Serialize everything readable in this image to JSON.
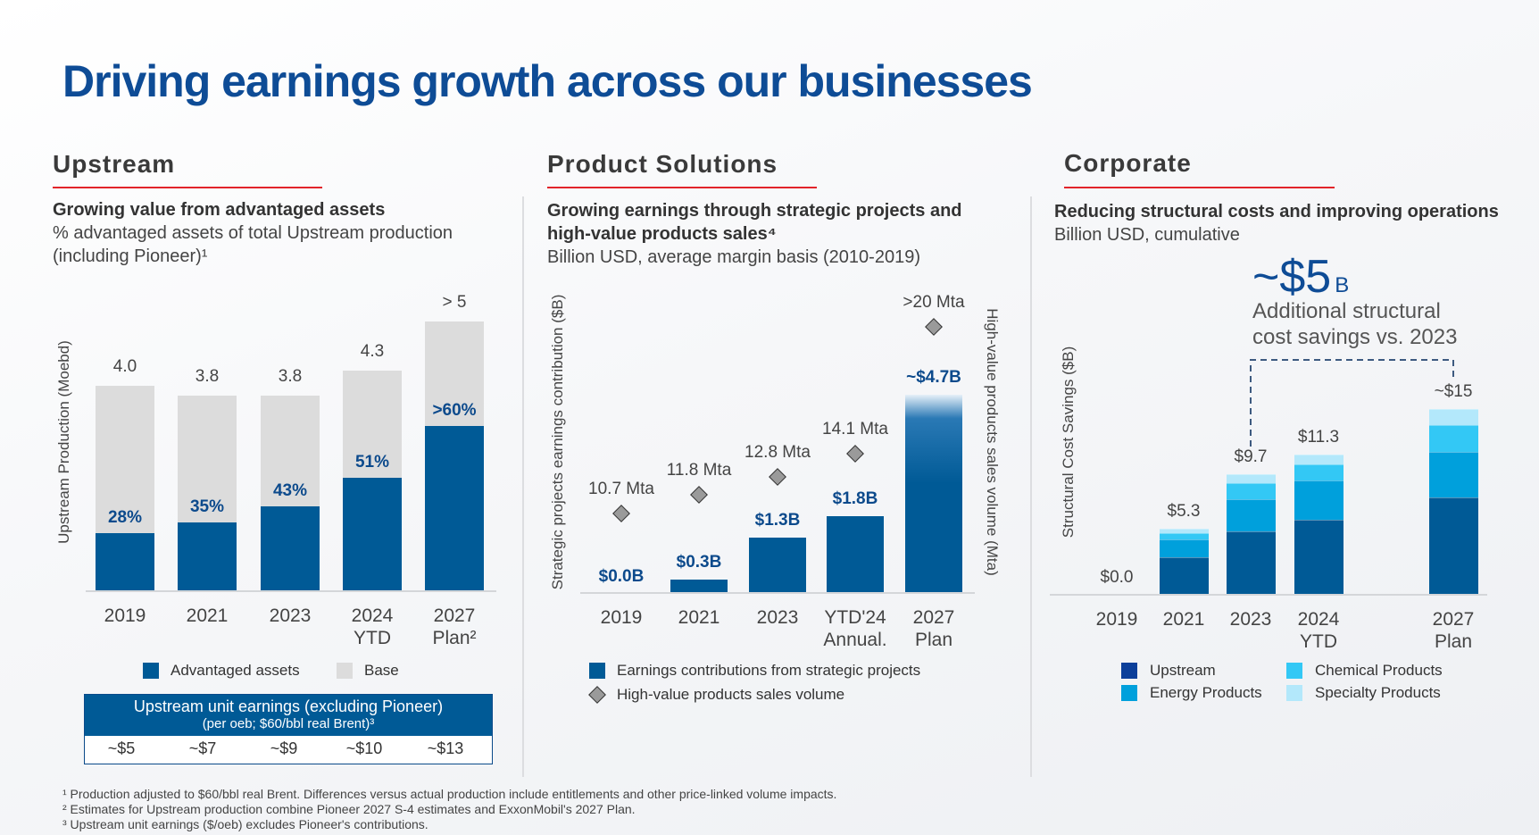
{
  "title": "Driving earnings growth across our businesses",
  "colors": {
    "title": "#0e4c96",
    "accent_line": "#e2242a",
    "dark_blue": "#005a96",
    "base_gray": "#dcdcdc",
    "energy": "#00a0dc",
    "chemical": "#33c8f5",
    "specialty": "#b3e8fb"
  },
  "upstream": {
    "header": "Upstream",
    "subtitle_bold": "Growing value from advantaged assets",
    "subtitle_1": "% advantaged assets of total Upstream production",
    "subtitle_2": "(including Pioneer)¹",
    "table": {
      "title": "Upstream unit earnings (excluding Pioneer)",
      "subtitle": "(per oeb; $60/bbl real Brent)³",
      "values": [
        "~$5",
        "~$7",
        "~$9",
        "~$10",
        "~$13"
      ]
    }
  },
  "product_solutions": {
    "header": "Product Solutions",
    "subtitle_bold_1": "Growing earnings through strategic projects and",
    "subtitle_bold_2": "high-value products sales⁴",
    "subtitle_1": "Billion USD, average margin basis (2010-2019)"
  },
  "corporate": {
    "header": "Corporate",
    "subtitle_bold": "Reducing structural costs and improving operations",
    "subtitle_1": "Billion USD, cumulative",
    "callout_value": "~$5",
    "callout_unit": "B",
    "callout_text_1": "Additional structural",
    "callout_text_2": "cost savings vs. 2023"
  },
  "chart_data": [
    {
      "type": "bar",
      "stacked": true,
      "ylabel": "Upstream Production (Moebd)",
      "categories": [
        "2019",
        "2021",
        "2023",
        "2024|YTD",
        "2027|Plan²"
      ],
      "totals": [
        4.0,
        3.8,
        3.8,
        4.3,
        5.25
      ],
      "total_labels": [
        "4.0",
        "3.8",
        "3.8",
        "4.3",
        "> 5"
      ],
      "advantaged_share": [
        0.28,
        0.35,
        0.43,
        0.51,
        0.61
      ],
      "share_labels": [
        "28%",
        "35%",
        "43%",
        "51%",
        ">60%"
      ],
      "legend": [
        "Advantaged assets",
        "Base"
      ],
      "series_colors": [
        "#005a96",
        "#dcdcdc"
      ]
    },
    {
      "type": "bar",
      "ylabel": "Strategic projects earnings contribution ($B)",
      "y2label": "High-value products sales volume (Mta)",
      "categories": [
        "2019",
        "2021",
        "2023",
        "YTD'24|Annual.",
        "2027|Plan"
      ],
      "values": [
        0.0,
        0.3,
        1.3,
        1.8,
        4.7
      ],
      "value_labels": [
        "$0.0B",
        "$0.3B",
        "$1.3B",
        "$1.8B",
        "~$4.7B"
      ],
      "secondary": {
        "type": "scatter",
        "values": [
          10.7,
          11.8,
          12.8,
          14.1,
          21.3
        ],
        "labels": [
          "10.7 Mta",
          "11.8 Mta",
          "12.8 Mta",
          "14.1 Mta",
          ">20 Mta"
        ]
      },
      "legend": [
        "Earnings contributions from strategic projects",
        "High-value products sales volume"
      ]
    },
    {
      "type": "bar",
      "stacked": true,
      "ylabel": "Structural Cost Savings ($B)",
      "categories": [
        "2019",
        "2021",
        "2023",
        "2024|YTD",
        "2027|Plan"
      ],
      "series": [
        {
          "name": "Upstream",
          "values": [
            0,
            3.0,
            5.1,
            6.0,
            7.8
          ],
          "color": "#005a96"
        },
        {
          "name": "Energy Products",
          "values": [
            0,
            1.4,
            2.6,
            3.2,
            3.7
          ],
          "color": "#00a0dc"
        },
        {
          "name": "Chemical Products",
          "values": [
            0,
            0.5,
            1.3,
            1.3,
            2.2
          ],
          "color": "#33c8f5"
        },
        {
          "name": "Specialty Products",
          "values": [
            0,
            0.4,
            0.7,
            0.8,
            1.3
          ],
          "color": "#b3e8fb"
        }
      ],
      "total_labels": [
        "$0.0",
        "$5.3",
        "$9.7",
        "$11.3",
        "~$15"
      ],
      "legend_swatch_colors": [
        "#0c3f9a",
        "#00a0dc",
        "#33c8f5",
        "#b3e8fb"
      ]
    }
  ],
  "footnotes": [
    "¹ Production adjusted to $60/bbl real Brent. Differences versus actual production include entitlements and other price-linked volume impacts.",
    "² Estimates for Upstream production combine Pioneer 2027 S-4 estimates and ExxonMobil's 2027 Plan.",
    "³ Upstream unit earnings ($/oeb) excludes Pioneer's contributions."
  ]
}
